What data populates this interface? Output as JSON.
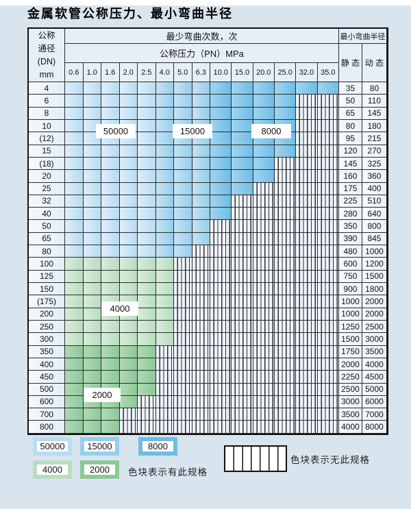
{
  "title": "金属软管公称压力、最小弯曲半径",
  "table": {
    "corner": {
      "line1": "公称",
      "line2": "通径",
      "line3": "(DN)",
      "line4": "mm"
    },
    "bend_cycles_header": "最少弯曲次数，次",
    "pressure_header": "公称压力（PN）MPa",
    "radius_header": "最小弯曲半径",
    "static_label": "静 态",
    "dynamic_label": "动 态",
    "pressure_columns": [
      "0.6",
      "1.0",
      "1.6",
      "2.0",
      "2.5",
      "4.0",
      "5.0",
      "6.3",
      "10.0",
      "15.0",
      "20.0",
      "25.0",
      "32.0",
      "35.0"
    ],
    "rows": [
      {
        "dn": "4",
        "cells_colored": 14,
        "band": "blue",
        "static": "35",
        "dynamic": "80"
      },
      {
        "dn": "6",
        "cells_colored": 12,
        "band": "blue",
        "static": "50",
        "dynamic": "110"
      },
      {
        "dn": "8",
        "cells_colored": 12,
        "band": "blue",
        "static": "65",
        "dynamic": "145"
      },
      {
        "dn": "10",
        "cells_colored": 12,
        "band": "blue",
        "static": "80",
        "dynamic": "180"
      },
      {
        "dn": "(12)",
        "cells_colored": 12,
        "band": "blue",
        "static": "95",
        "dynamic": "215"
      },
      {
        "dn": "15",
        "cells_colored": 12,
        "band": "blue",
        "static": "120",
        "dynamic": "270"
      },
      {
        "dn": "(18)",
        "cells_colored": 11,
        "band": "blue",
        "static": "145",
        "dynamic": "325"
      },
      {
        "dn": "20",
        "cells_colored": 11,
        "band": "blue",
        "static": "160",
        "dynamic": "360"
      },
      {
        "dn": "25",
        "cells_colored": 10,
        "band": "blue",
        "static": "175",
        "dynamic": "400"
      },
      {
        "dn": "32",
        "cells_colored": 9,
        "band": "blue",
        "static": "225",
        "dynamic": "510"
      },
      {
        "dn": "40",
        "cells_colored": 9,
        "band": "blue",
        "static": "280",
        "dynamic": "640"
      },
      {
        "dn": "50",
        "cells_colored": 8,
        "band": "blue",
        "static": "350",
        "dynamic": "800"
      },
      {
        "dn": "65",
        "cells_colored": 8,
        "band": "blue",
        "static": "390",
        "dynamic": "845"
      },
      {
        "dn": "80",
        "cells_colored": 7,
        "band": "blue",
        "static": "480",
        "dynamic": "1000"
      },
      {
        "dn": "100",
        "cells_colored": 6,
        "band": "g4",
        "static": "600",
        "dynamic": "1200"
      },
      {
        "dn": "125",
        "cells_colored": 6,
        "band": "g4",
        "static": "750",
        "dynamic": "1500"
      },
      {
        "dn": "150",
        "cells_colored": 6,
        "band": "g4",
        "static": "900",
        "dynamic": "1800"
      },
      {
        "dn": "(175)",
        "cells_colored": 6,
        "band": "g4",
        "static": "1000",
        "dynamic": "2000"
      },
      {
        "dn": "200",
        "cells_colored": 6,
        "band": "g4",
        "static": "1000",
        "dynamic": "2000"
      },
      {
        "dn": "250",
        "cells_colored": 6,
        "band": "g4",
        "static": "1250",
        "dynamic": "2500"
      },
      {
        "dn": "300",
        "cells_colored": 6,
        "band": "g4",
        "static": "1500",
        "dynamic": "3000"
      },
      {
        "dn": "350",
        "cells_colored": 5,
        "band": "g2",
        "static": "1750",
        "dynamic": "3500"
      },
      {
        "dn": "400",
        "cells_colored": 5,
        "band": "g2",
        "static": "2000",
        "dynamic": "4000"
      },
      {
        "dn": "450",
        "cells_colored": 5,
        "band": "g2",
        "static": "2250",
        "dynamic": "4500"
      },
      {
        "dn": "500",
        "cells_colored": 5,
        "band": "g2",
        "static": "2500",
        "dynamic": "5000"
      },
      {
        "dn": "600",
        "cells_colored": 4,
        "band": "g2",
        "static": "3000",
        "dynamic": "6000"
      },
      {
        "dn": "700",
        "cells_colored": 3,
        "band": "g2",
        "static": "3500",
        "dynamic": "7000"
      },
      {
        "dn": "800",
        "cells_colored": 3,
        "band": "g2",
        "static": "4000",
        "dynamic": "8000"
      }
    ],
    "blue_band_split": {
      "cycles_50000_columns": "0.6–2.5",
      "cycles_15000_columns": "4.0–6.3",
      "cycles_8000_columns": "10.0–35.0"
    }
  },
  "cycle_labels": [
    {
      "value": "50000"
    },
    {
      "value": "15000"
    },
    {
      "value": "8000"
    },
    {
      "value": "4000"
    },
    {
      "value": "2000"
    }
  ],
  "legend": {
    "series": [
      {
        "value": "50000",
        "color_key": "b50"
      },
      {
        "value": "15000",
        "color_key": "b15"
      },
      {
        "value": "8000",
        "color_key": "b8"
      },
      {
        "value": "4000",
        "color_key": "g4"
      },
      {
        "value": "2000",
        "color_key": "g2"
      }
    ],
    "has_spec_text": "色块表示有此规格",
    "no_spec_text": "色块表示无此规格"
  },
  "colors": {
    "b50": {
      "light": "#ddeefa",
      "dark": "#b9dcf2"
    },
    "b15": {
      "light": "#c6e2f5",
      "dark": "#96cfec"
    },
    "b8": {
      "light": "#a2d4f0",
      "dark": "#6fbde6"
    },
    "g4": {
      "light": "#d8ecd9",
      "dark": "#b9ddbf"
    },
    "g2": {
      "light": "#b0d9b6",
      "dark": "#8cc997"
    },
    "page_background": "#d9e5ee",
    "grid_line": "#2b2b2b"
  }
}
